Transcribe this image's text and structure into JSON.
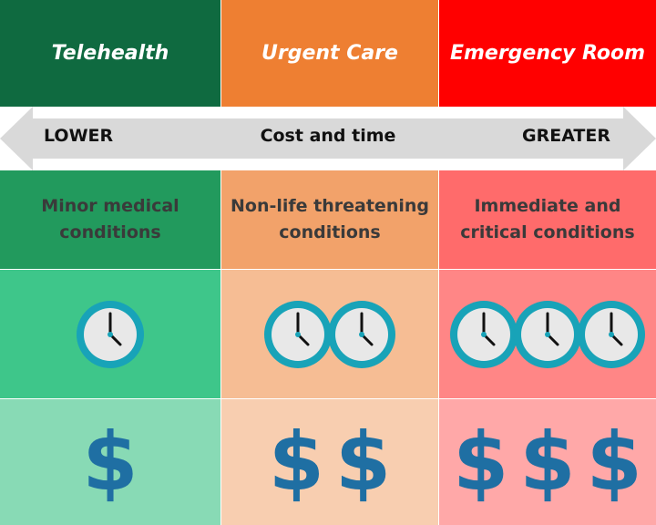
{
  "columns": [
    {
      "title": "Telehealth",
      "header_color": "#0f6a40",
      "desc_lines": [
        "Minor medical",
        "conditions"
      ],
      "desc_color": "#229a5d",
      "time_level": 1,
      "time_color": "#3ec68a",
      "cost_level": 1,
      "cost_color": "#88dab5"
    },
    {
      "title": "Urgent Care",
      "header_color": "#ee7f32",
      "desc_lines": [
        "Non-life threatening",
        "conditions"
      ],
      "desc_color": "#f2a26a",
      "time_level": 2,
      "time_color": "#f6bd94",
      "cost_level": 2,
      "cost_color": "#f8ceb0"
    },
    {
      "title": "Emergency Room",
      "header_color": "#ff0000",
      "desc_lines": [
        "Immediate and",
        "critical conditions"
      ],
      "desc_color": "#ff6b6b",
      "time_level": 3,
      "time_color": "#ff8686",
      "cost_level": 3,
      "cost_color": "#ffa8a8"
    }
  ],
  "scale": {
    "left_label": "LOWER",
    "center_label": "Cost and time",
    "right_label": "GREATER",
    "arrow_color": "#d9d9d9"
  },
  "symbols": {
    "time_icon": "clock-icon",
    "cost_icon": "dollar-icon",
    "cost_glyph": "$",
    "clock_ring_color": "#18a3b8",
    "clock_face_color": "#e8e8e8",
    "dollar_color": "#1f6fa3"
  }
}
